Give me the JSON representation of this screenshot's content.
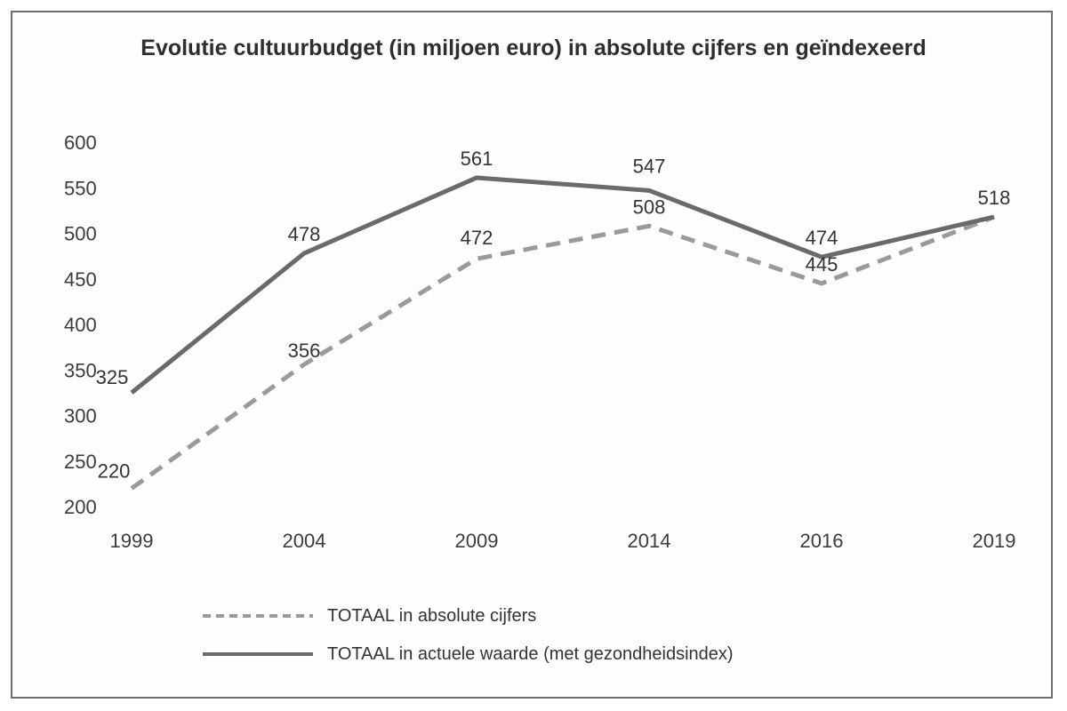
{
  "chart_data": {
    "type": "line",
    "title": "Evolutie cultuurbudget (in miljoen euro) in absolute cijfers en geïndexeerd",
    "categories": [
      "1999",
      "2004",
      "2009",
      "2014",
      "2016",
      "2019"
    ],
    "ylim": [
      200,
      600
    ],
    "yticks": [
      "200",
      "250",
      "300",
      "350",
      "400",
      "450",
      "500",
      "550",
      "600"
    ],
    "grid": false,
    "legend_position": "bottom",
    "series": [
      {
        "name": "TOTAAL in absolute cijfers",
        "style": "dashed",
        "color": "#9a9a9a",
        "values": [
          220,
          356,
          472,
          508,
          445,
          518
        ],
        "labels": [
          "220",
          "356",
          "472",
          "508",
          "445",
          ""
        ]
      },
      {
        "name": "TOTAAL in actuele waarde (met gezondheidsindex)",
        "style": "solid",
        "color": "#6a6a6a",
        "values": [
          325,
          478,
          561,
          547,
          474,
          518
        ],
        "labels": [
          "325",
          "478",
          "561",
          "547",
          "474",
          "518"
        ]
      }
    ]
  }
}
